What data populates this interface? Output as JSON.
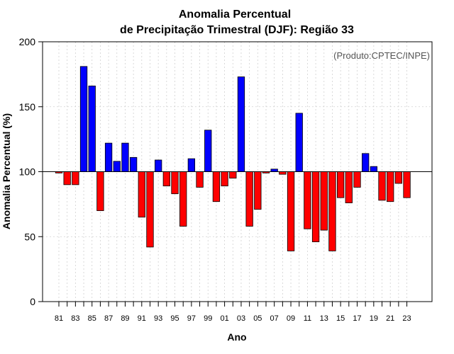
{
  "chart_data": {
    "type": "bar",
    "title_line1": "Anomalia Percentual",
    "title_line2": "de Precipitação Trimestral (DJF): Região 33",
    "xlabel": "Ano",
    "ylabel": "Anomalia Percentual (%)",
    "credit": "(Produto:CPTEC/INPE)",
    "baseline": 100,
    "ylim": [
      0,
      200
    ],
    "yticks": [
      0,
      50,
      100,
      150,
      200
    ],
    "xtick_labels": [
      "81",
      "83",
      "85",
      "87",
      "89",
      "91",
      "93",
      "95",
      "97",
      "99",
      "01",
      "03",
      "05",
      "07",
      "09",
      "11",
      "13",
      "15",
      "17",
      "19",
      "21",
      "23"
    ],
    "above_color": "#0000ff",
    "below_color": "#ff0000",
    "grid": true,
    "categories": [
      "1981",
      "1982",
      "1983",
      "1984",
      "1985",
      "1986",
      "1987",
      "1988",
      "1989",
      "1990",
      "1991",
      "1992",
      "1993",
      "1994",
      "1995",
      "1996",
      "1997",
      "1998",
      "1999",
      "2000",
      "2001",
      "2002",
      "2003",
      "2004",
      "2005",
      "2006",
      "2007",
      "2008",
      "2009",
      "2010",
      "2011",
      "2012",
      "2013",
      "2014",
      "2015",
      "2016",
      "2017",
      "2018",
      "2019",
      "2020",
      "2021",
      "2022",
      "2023"
    ],
    "values": [
      99,
      90,
      90,
      181,
      166,
      70,
      122,
      108,
      122,
      111,
      65,
      42,
      109,
      89,
      83,
      58,
      110,
      88,
      132,
      77,
      89,
      95,
      173,
      58,
      71,
      99,
      102,
      98,
      39,
      145,
      56,
      46,
      55,
      39,
      80,
      76,
      88,
      114,
      104,
      78,
      77,
      91,
      80
    ]
  }
}
